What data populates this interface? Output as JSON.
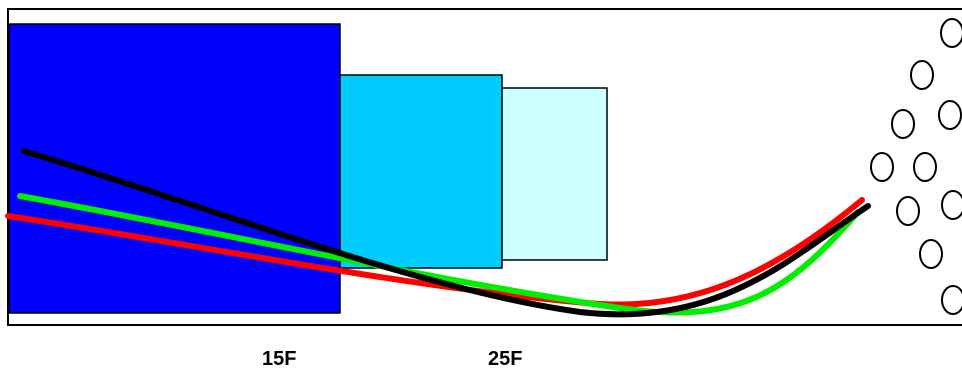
{
  "labels": {
    "left_marker": "15F",
    "right_marker": "25F"
  },
  "colors": {
    "frame": "#000000",
    "block_dark": "#0000ff",
    "block_mid": "#00ccff",
    "block_light": "#ccffff",
    "curve_red": "#ff0000",
    "curve_green": "#00ee00",
    "curve_black": "#000000",
    "circle_stroke": "#000000",
    "circle_fill": "#ffffff"
  },
  "icons": {
    "circle_cluster": "circle-icon"
  }
}
